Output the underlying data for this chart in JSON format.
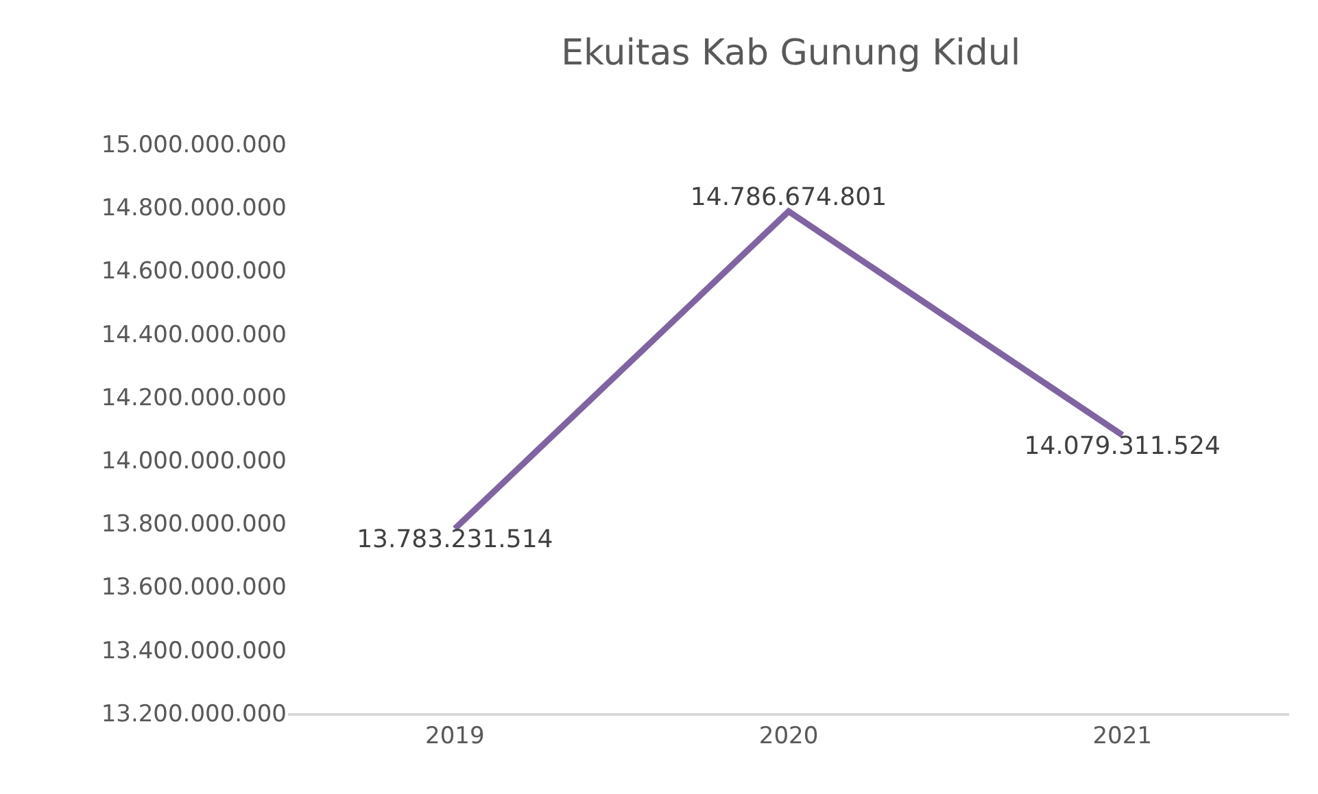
{
  "chart_data": {
    "type": "line",
    "title": "Ekuitas Kab Gunung Kidul",
    "categories": [
      "2019",
      "2020",
      "2021"
    ],
    "series": [
      {
        "color": "#8064a2",
        "values": [
          13783231514,
          14786674801,
          14079311524
        ],
        "value_labels": [
          "13.783.231.514",
          "14.786.674.801",
          "14.079.311.524"
        ]
      }
    ],
    "ylim": [
      13200000000,
      15000000000
    ],
    "yticks": [
      {
        "value": 13200000000,
        "label": "13.200.000.000"
      },
      {
        "value": 13400000000,
        "label": "13.400.000.000"
      },
      {
        "value": 13600000000,
        "label": "13.600.000.000"
      },
      {
        "value": 13800000000,
        "label": "13.800.000.000"
      },
      {
        "value": 14000000000,
        "label": "14.000.000.000"
      },
      {
        "value": 14200000000,
        "label": "14.200.000.000"
      },
      {
        "value": 14400000000,
        "label": "14.400.000.000"
      },
      {
        "value": 14600000000,
        "label": "14.600.000.000"
      },
      {
        "value": 14800000000,
        "label": "14.800.000.000"
      },
      {
        "value": 15000000000,
        "label": "15.000.000.000"
      }
    ],
    "grid": false,
    "marker": "none",
    "line_style": "solid"
  }
}
